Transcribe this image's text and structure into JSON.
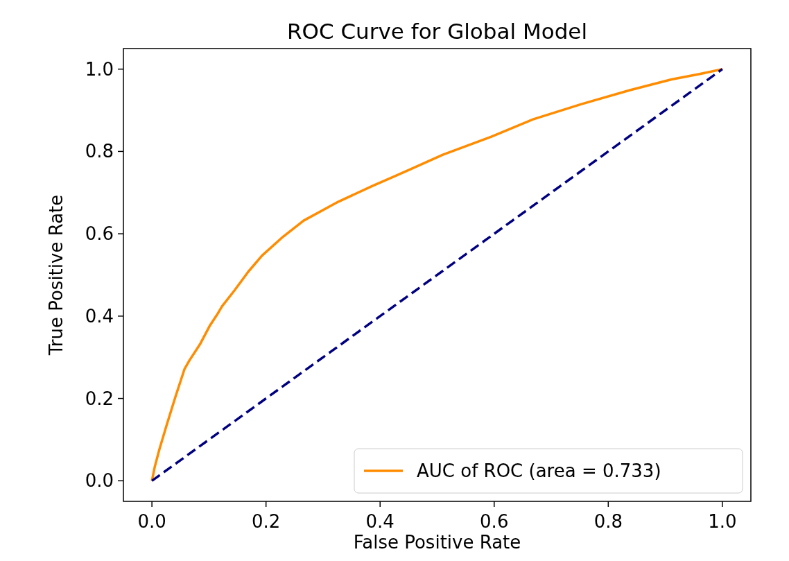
{
  "chart_data": {
    "type": "line",
    "title": "ROC Curve for Global Model",
    "xlabel": "False Positive Rate",
    "ylabel": "True Positive Rate",
    "xlim": [
      -0.05,
      1.05
    ],
    "ylim": [
      -0.05,
      1.05
    ],
    "xticks": [
      {
        "value": 0,
        "label": "0.0"
      },
      {
        "value": 0.2,
        "label": "0.2"
      },
      {
        "value": 0.4,
        "label": "0.4"
      },
      {
        "value": 0.6,
        "label": "0.6"
      },
      {
        "value": 0.8,
        "label": "0.8"
      },
      {
        "value": 1,
        "label": "1.0"
      }
    ],
    "yticks": [
      {
        "value": 0,
        "label": "0.0"
      },
      {
        "value": 0.2,
        "label": "0.2"
      },
      {
        "value": 0.4,
        "label": "0.4"
      },
      {
        "value": 0.6,
        "label": "0.6"
      },
      {
        "value": 0.8,
        "label": "0.8"
      },
      {
        "value": 1,
        "label": "1.0"
      }
    ],
    "legend": "bottom right",
    "grid": false,
    "series": [
      {
        "name": "AUC of ROC (area = 0.733)",
        "color": "#ff8c00",
        "line_style": "solid",
        "x": [
          0,
          0.005,
          0.013,
          0.026,
          0.041,
          0.057,
          0.066,
          0.084,
          0.102,
          0.114,
          0.123,
          0.145,
          0.169,
          0.193,
          0.23,
          0.266,
          0.327,
          0.388,
          0.449,
          0.51,
          0.595,
          0.668,
          0.753,
          0.838,
          0.911,
          0.96,
          1
        ],
        "values": [
          0,
          0.034,
          0.076,
          0.136,
          0.203,
          0.271,
          0.293,
          0.331,
          0.378,
          0.403,
          0.424,
          0.463,
          0.508,
          0.547,
          0.593,
          0.632,
          0.678,
          0.717,
          0.754,
          0.792,
          0.836,
          0.878,
          0.915,
          0.949,
          0.975,
          0.988,
          1
        ]
      },
      {
        "color": "#000080",
        "line_style": "dashed",
        "x": [
          0,
          1
        ],
        "values": [
          0,
          1
        ]
      }
    ]
  }
}
